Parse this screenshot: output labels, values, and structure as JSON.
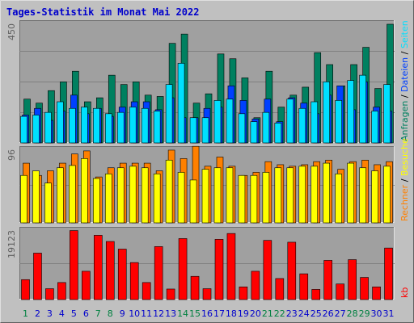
{
  "chart_data": {
    "type": "bar",
    "title": "Tages-Statistik im Monat Mai 2022",
    "categories": [
      "1",
      "2",
      "3",
      "4",
      "5",
      "6",
      "7",
      "8",
      "9",
      "10",
      "11",
      "12",
      "13",
      "14",
      "15",
      "16",
      "17",
      "18",
      "19",
      "20",
      "21",
      "22",
      "23",
      "24",
      "25",
      "26",
      "27",
      "28",
      "29",
      "30",
      "31"
    ],
    "weekend_days": [
      "1",
      "7",
      "8",
      "14",
      "15",
      "21",
      "22",
      "28",
      "29"
    ],
    "colors": {
      "background": "#c0c0c0",
      "plot_area": "#a0a0a0",
      "title": "#0000cc",
      "weekday_label": "#0000cc",
      "weekend_label": "#008040",
      "gridline": "#808080",
      "anfragen": "#008060",
      "dateien": "#0040ff",
      "seiten": "#00e0ff",
      "besuche": "#ffff00",
      "rechner": "#ff8000",
      "kb": "#ff0000",
      "legend_separator": "#000000"
    },
    "panels": [
      {
        "ymax_label": "450",
        "ymax": 450,
        "legend": [
          {
            "text": "Anfragen",
            "color": "#008060"
          },
          {
            "text": "Dateien",
            "color": "#0040ff"
          },
          {
            "text": "Seiten",
            "color": "#00e0ff"
          }
        ],
        "series": [
          {
            "name": "Anfragen",
            "values": [
              165,
              150,
              197,
              230,
              270,
              155,
              170,
              255,
              220,
              230,
              180,
              175,
              375,
              410,
              150,
              185,
              335,
              317,
              245,
              95,
              270,
              135,
              180,
              210,
              340,
              295,
              215,
              295,
              360,
              205,
              447
            ]
          },
          {
            "name": "Dateien",
            "values": [
              105,
              130,
              85,
              120,
              180,
              110,
              130,
              100,
              135,
              155,
              155,
              125,
              170,
              95,
              95,
              130,
              135,
              215,
              160,
              90,
              165,
              80,
              170,
              150,
              110,
              180,
              215,
              125,
              230,
              135,
              120
            ]
          },
          {
            "name": "Seiten",
            "values": [
              100,
              105,
              115,
              155,
              130,
              135,
              130,
              110,
              115,
              135,
              130,
              120,
              220,
              300,
              95,
              95,
              160,
              165,
              110,
              80,
              115,
              75,
              165,
              130,
              155,
              230,
              160,
              235,
              255,
              120,
              220
            ]
          }
        ]
      },
      {
        "ymax_label": "96",
        "ymax": 96,
        "legend": [
          {
            "text": "Rechner",
            "color": "#ff8000"
          },
          {
            "text": "Besuche",
            "color": "#ffff00"
          }
        ],
        "series": [
          {
            "name": "Besuche",
            "values": [
              62,
              68,
              52,
              72,
              75,
              84,
              58,
              64,
              72,
              74,
              72,
              64,
              82,
              66,
              56,
              70,
              72,
              72,
              62,
              62,
              66,
              72,
              72,
              74,
              74,
              78,
              64,
              78,
              72,
              68,
              74
            ]
          },
          {
            "name": "Rechner",
            "values": [
              78,
              62,
              68,
              78,
              90,
              94,
              60,
              72,
              78,
              78,
              78,
              68,
              95,
              84,
              100,
              74,
              86,
              74,
              62,
              66,
              80,
              76,
              74,
              76,
              80,
              82,
              70,
              80,
              82,
              76,
              80
            ]
          }
        ]
      },
      {
        "ymax_label": "19123",
        "ymax": 19123,
        "legend": [
          {
            "text": "kb",
            "color": "#ff0000"
          }
        ],
        "series": [
          {
            "name": "kb",
            "values": [
              5500,
              12800,
              3000,
              4700,
              19000,
              7800,
              17700,
              16000,
              13900,
              10200,
              4700,
              14600,
              2900,
              16800,
              6400,
              3000,
              16600,
              18200,
              3500,
              7800,
              16300,
              5800,
              15800,
              7100,
              2800,
              10800,
              4300,
              11000,
              6100,
              3500,
              14200
            ]
          }
        ]
      }
    ]
  }
}
